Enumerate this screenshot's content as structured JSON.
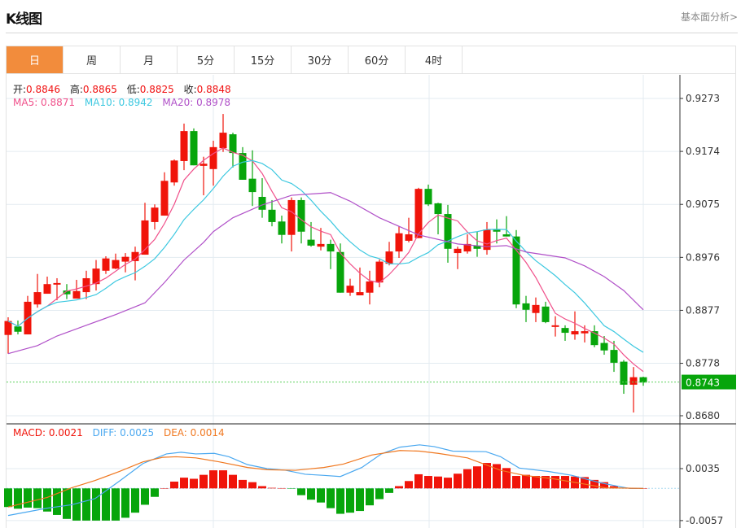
{
  "header": {
    "title": "K线图",
    "more_link": "基本面分析>"
  },
  "tabs": [
    {
      "label": "日",
      "active": true
    },
    {
      "label": "周"
    },
    {
      "label": "月"
    },
    {
      "label": "5分"
    },
    {
      "label": "15分"
    },
    {
      "label": "30分"
    },
    {
      "label": "60分"
    },
    {
      "label": "4时"
    }
  ],
  "ohlc_legend": {
    "open_label": "开:",
    "open": "0.8846",
    "high_label": "高:",
    "high": "0.8865",
    "low_label": "低:",
    "low": "0.8825",
    "close_label": "收:",
    "close": "0.8848"
  },
  "ma_legend": {
    "ma5": "MA5: 0.8871",
    "ma10": "MA10: 0.8942",
    "ma20": "MA20: 0.8978"
  },
  "macd_legend": {
    "macd": "MACD: 0.0021",
    "diff": "DIFF: 0.0025",
    "dea": "DEA: 0.0014"
  },
  "colors": {
    "up": "#f0140a",
    "down": "#07a50b",
    "ma5": "#f0508a",
    "ma10": "#3cc8e0",
    "ma20": "#b050c8",
    "diff": "#4aa8f0",
    "dea": "#f07820",
    "accent": "#f28c3c"
  },
  "chart_data": [
    {
      "type": "candlestick",
      "title": "K线图",
      "y_ticks": [
        0.9273,
        0.9174,
        0.9075,
        0.8976,
        0.8877,
        0.8778,
        0.868
      ],
      "ylim": [
        0.868,
        0.9273
      ],
      "last_price": "0.8743",
      "candles": [
        [
          0.8831,
          0.8864,
          0.8796,
          0.8857
        ],
        [
          0.8847,
          0.8858,
          0.8832,
          0.8837
        ],
        [
          0.8832,
          0.8904,
          0.8832,
          0.8893
        ],
        [
          0.8888,
          0.8945,
          0.8882,
          0.8911
        ],
        [
          0.8908,
          0.894,
          0.8908,
          0.8926
        ],
        [
          0.8925,
          0.8937,
          0.8896,
          0.8928
        ],
        [
          0.8914,
          0.8926,
          0.8898,
          0.8907
        ],
        [
          0.8899,
          0.8934,
          0.8899,
          0.8913
        ],
        [
          0.8911,
          0.8951,
          0.8898,
          0.8937
        ],
        [
          0.8926,
          0.8971,
          0.8914,
          0.8955
        ],
        [
          0.8951,
          0.8978,
          0.8945,
          0.8974
        ],
        [
          0.8955,
          0.8983,
          0.8954,
          0.8971
        ],
        [
          0.8968,
          0.8984,
          0.8948,
          0.8977
        ],
        [
          0.8969,
          0.8996,
          0.8933,
          0.8986
        ],
        [
          0.8981,
          0.9078,
          0.8981,
          0.9045
        ],
        [
          0.9042,
          0.9075,
          0.9028,
          0.9069
        ],
        [
          0.9054,
          0.9135,
          0.9054,
          0.9119
        ],
        [
          0.9116,
          0.9159,
          0.911,
          0.9157
        ],
        [
          0.9156,
          0.9226,
          0.9139,
          0.9212
        ],
        [
          0.9212,
          0.9217,
          0.9148,
          0.9148
        ],
        [
          0.9147,
          0.9164,
          0.9092,
          0.9151
        ],
        [
          0.9141,
          0.9194,
          0.911,
          0.9182
        ],
        [
          0.918,
          0.9244,
          0.9173,
          0.9209
        ],
        [
          0.9206,
          0.9209,
          0.9144,
          0.9171
        ],
        [
          0.9171,
          0.9182,
          0.9121,
          0.9121
        ],
        [
          0.9123,
          0.9176,
          0.9072,
          0.9098
        ],
        [
          0.9089,
          0.9124,
          0.905,
          0.9065
        ],
        [
          0.9065,
          0.9083,
          0.9034,
          0.9042
        ],
        [
          0.9043,
          0.9054,
          0.9002,
          0.9018
        ],
        [
          0.9018,
          0.9088,
          0.8987,
          0.9083
        ],
        [
          0.9083,
          0.9088,
          0.9002,
          0.9024
        ],
        [
          0.9009,
          0.9042,
          0.8996,
          0.8998
        ],
        [
          0.8996,
          0.9031,
          0.8989,
          0.9001
        ],
        [
          0.9001,
          0.9009,
          0.8954,
          0.8987
        ],
        [
          0.8986,
          0.9002,
          0.891,
          0.891
        ],
        [
          0.891,
          0.8936,
          0.8904,
          0.8923
        ],
        [
          0.8905,
          0.8957,
          0.8905,
          0.8911
        ],
        [
          0.891,
          0.8951,
          0.8888,
          0.8931
        ],
        [
          0.8929,
          0.8972,
          0.892,
          0.8968
        ],
        [
          0.8964,
          0.9005,
          0.8961,
          0.8987
        ],
        [
          0.8987,
          0.9034,
          0.8975,
          0.9021
        ],
        [
          0.9007,
          0.905,
          0.9004,
          0.9019
        ],
        [
          0.9012,
          0.9106,
          0.9012,
          0.9104
        ],
        [
          0.9104,
          0.9112,
          0.9072,
          0.9075
        ],
        [
          0.9077,
          0.9078,
          0.9019,
          0.9057
        ],
        [
          0.9057,
          0.9074,
          0.8966,
          0.8992
        ],
        [
          0.8984,
          0.8996,
          0.8954,
          0.8992
        ],
        [
          0.8987,
          0.9019,
          0.8983,
          0.9001
        ],
        [
          0.8998,
          0.9024,
          0.8977,
          0.8992
        ],
        [
          0.899,
          0.9042,
          0.8981,
          0.9028
        ],
        [
          0.9028,
          0.9047,
          0.9002,
          0.9024
        ],
        [
          0.9019,
          0.9053,
          0.9015,
          0.9015
        ],
        [
          0.9015,
          0.9027,
          0.8881,
          0.8888
        ],
        [
          0.889,
          0.8904,
          0.8855,
          0.8878
        ],
        [
          0.8872,
          0.8901,
          0.8855,
          0.8887
        ],
        [
          0.8884,
          0.8893,
          0.8853,
          0.8855
        ],
        [
          0.8846,
          0.8866,
          0.8828,
          0.8849
        ],
        [
          0.8844,
          0.8849,
          0.882,
          0.8835
        ],
        [
          0.8832,
          0.8875,
          0.8822,
          0.8838
        ],
        [
          0.8834,
          0.8849,
          0.8817,
          0.8838
        ],
        [
          0.8838,
          0.8849,
          0.8808,
          0.8812
        ],
        [
          0.8816,
          0.8829,
          0.8794,
          0.8802
        ],
        [
          0.8803,
          0.882,
          0.8762,
          0.8779
        ],
        [
          0.8781,
          0.8784,
          0.8721,
          0.8738
        ],
        [
          0.8738,
          0.8771,
          0.8686,
          0.8752
        ],
        [
          0.8752,
          0.8753,
          0.8736,
          0.8742
        ]
      ],
      "ma20_points": [
        [
          0,
          0.8796
        ],
        [
          3,
          0.8811
        ],
        [
          5,
          0.8829
        ],
        [
          8,
          0.8849
        ],
        [
          11,
          0.8869
        ],
        [
          14,
          0.8891
        ],
        [
          16,
          0.8929
        ],
        [
          18,
          0.8971
        ],
        [
          20,
          0.9004
        ],
        [
          21,
          0.9024
        ],
        [
          23,
          0.905
        ],
        [
          26,
          0.9074
        ],
        [
          29,
          0.9092
        ],
        [
          33,
          0.9097
        ],
        [
          35,
          0.9081
        ],
        [
          38,
          0.905
        ],
        [
          40,
          0.9034
        ],
        [
          42,
          0.9018
        ],
        [
          46,
          0.9001
        ],
        [
          49,
          0.8996
        ],
        [
          51,
          0.8998
        ],
        [
          53,
          0.8986
        ],
        [
          57,
          0.8975
        ],
        [
          59,
          0.896
        ],
        [
          61,
          0.894
        ],
        [
          63,
          0.8914
        ],
        [
          65,
          0.8878
        ]
      ]
    },
    {
      "type": "bar",
      "title": "MACD",
      "y_ticks": [
        0.0035,
        -0.0057
      ],
      "histogram": [
        -0.0033,
        -0.0036,
        -0.0034,
        -0.0035,
        -0.0041,
        -0.0047,
        -0.0054,
        -0.0057,
        -0.0057,
        -0.0057,
        -0.0057,
        -0.0057,
        -0.0052,
        -0.0043,
        -0.0029,
        -0.0015,
        0.0,
        0.0012,
        0.0019,
        0.0017,
        0.0024,
        0.0032,
        0.0032,
        0.0024,
        0.0015,
        0.0011,
        0.0004,
        0.0001,
        5e-05,
        -5e-05,
        -0.0012,
        -0.002,
        -0.0025,
        -0.0035,
        -0.0045,
        -0.0043,
        -0.004,
        -0.003,
        -0.0019,
        -0.0008,
        0.0004,
        0.0013,
        0.0025,
        0.0022,
        0.0021,
        0.0019,
        0.0026,
        0.0034,
        0.0039,
        0.0045,
        0.0043,
        0.0036,
        0.0022,
        0.0024,
        0.0022,
        0.0022,
        0.0022,
        0.0022,
        0.0021,
        0.002,
        0.0015,
        0.0011,
        0.0004,
        0.0001,
        0.0,
        0.0
      ],
      "diff_points": [
        [
          0,
          -0.0048
        ],
        [
          4,
          -0.0035
        ],
        [
          6.5,
          -0.0029
        ],
        [
          8.9,
          -0.0018
        ],
        [
          11.4,
          0.0013
        ],
        [
          13.8,
          0.0044
        ],
        [
          16.2,
          0.0061
        ],
        [
          17.7,
          0.0064
        ],
        [
          19.2,
          0.0061
        ],
        [
          21.1,
          0.0062
        ],
        [
          22.6,
          0.0056
        ],
        [
          24.5,
          0.0042
        ],
        [
          26.5,
          0.0035
        ],
        [
          28.4,
          0.0032
        ],
        [
          30.4,
          0.0025
        ],
        [
          32.3,
          0.0023
        ],
        [
          34,
          0.0021
        ],
        [
          36.2,
          0.0037
        ],
        [
          38.2,
          0.0061
        ],
        [
          40.1,
          0.0073
        ],
        [
          42.1,
          0.0077
        ],
        [
          43.6,
          0.0074
        ],
        [
          45.5,
          0.0066
        ],
        [
          48.9,
          0.0065
        ],
        [
          50.4,
          0.0056
        ],
        [
          52.3,
          0.0036
        ],
        [
          55.3,
          0.003
        ],
        [
          57.7,
          0.0023
        ],
        [
          60.6,
          0.001
        ],
        [
          62.6,
          0.0003
        ],
        [
          63.6,
          0.0
        ],
        [
          65,
          0.0
        ]
      ],
      "dea_points": [
        [
          0,
          -0.0033
        ],
        [
          4,
          -0.0016
        ],
        [
          6.5,
          0.0001
        ],
        [
          8.9,
          0.0014
        ],
        [
          11.4,
          0.003
        ],
        [
          13.8,
          0.0047
        ],
        [
          15.8,
          0.0055
        ],
        [
          17.2,
          0.0056
        ],
        [
          19.2,
          0.0054
        ],
        [
          21.6,
          0.0047
        ],
        [
          24.5,
          0.0037
        ],
        [
          26.5,
          0.0033
        ],
        [
          29.4,
          0.0032
        ],
        [
          32.3,
          0.0037
        ],
        [
          34.3,
          0.0043
        ],
        [
          37.2,
          0.0059
        ],
        [
          40.1,
          0.0067
        ],
        [
          42.1,
          0.0066
        ],
        [
          44,
          0.0062
        ],
        [
          47,
          0.0054
        ],
        [
          50.4,
          0.0032
        ],
        [
          52.8,
          0.0023
        ],
        [
          55.8,
          0.0017
        ],
        [
          59.2,
          0.0007
        ],
        [
          61.1,
          0.0001
        ],
        [
          65,
          0.0
        ]
      ]
    }
  ]
}
